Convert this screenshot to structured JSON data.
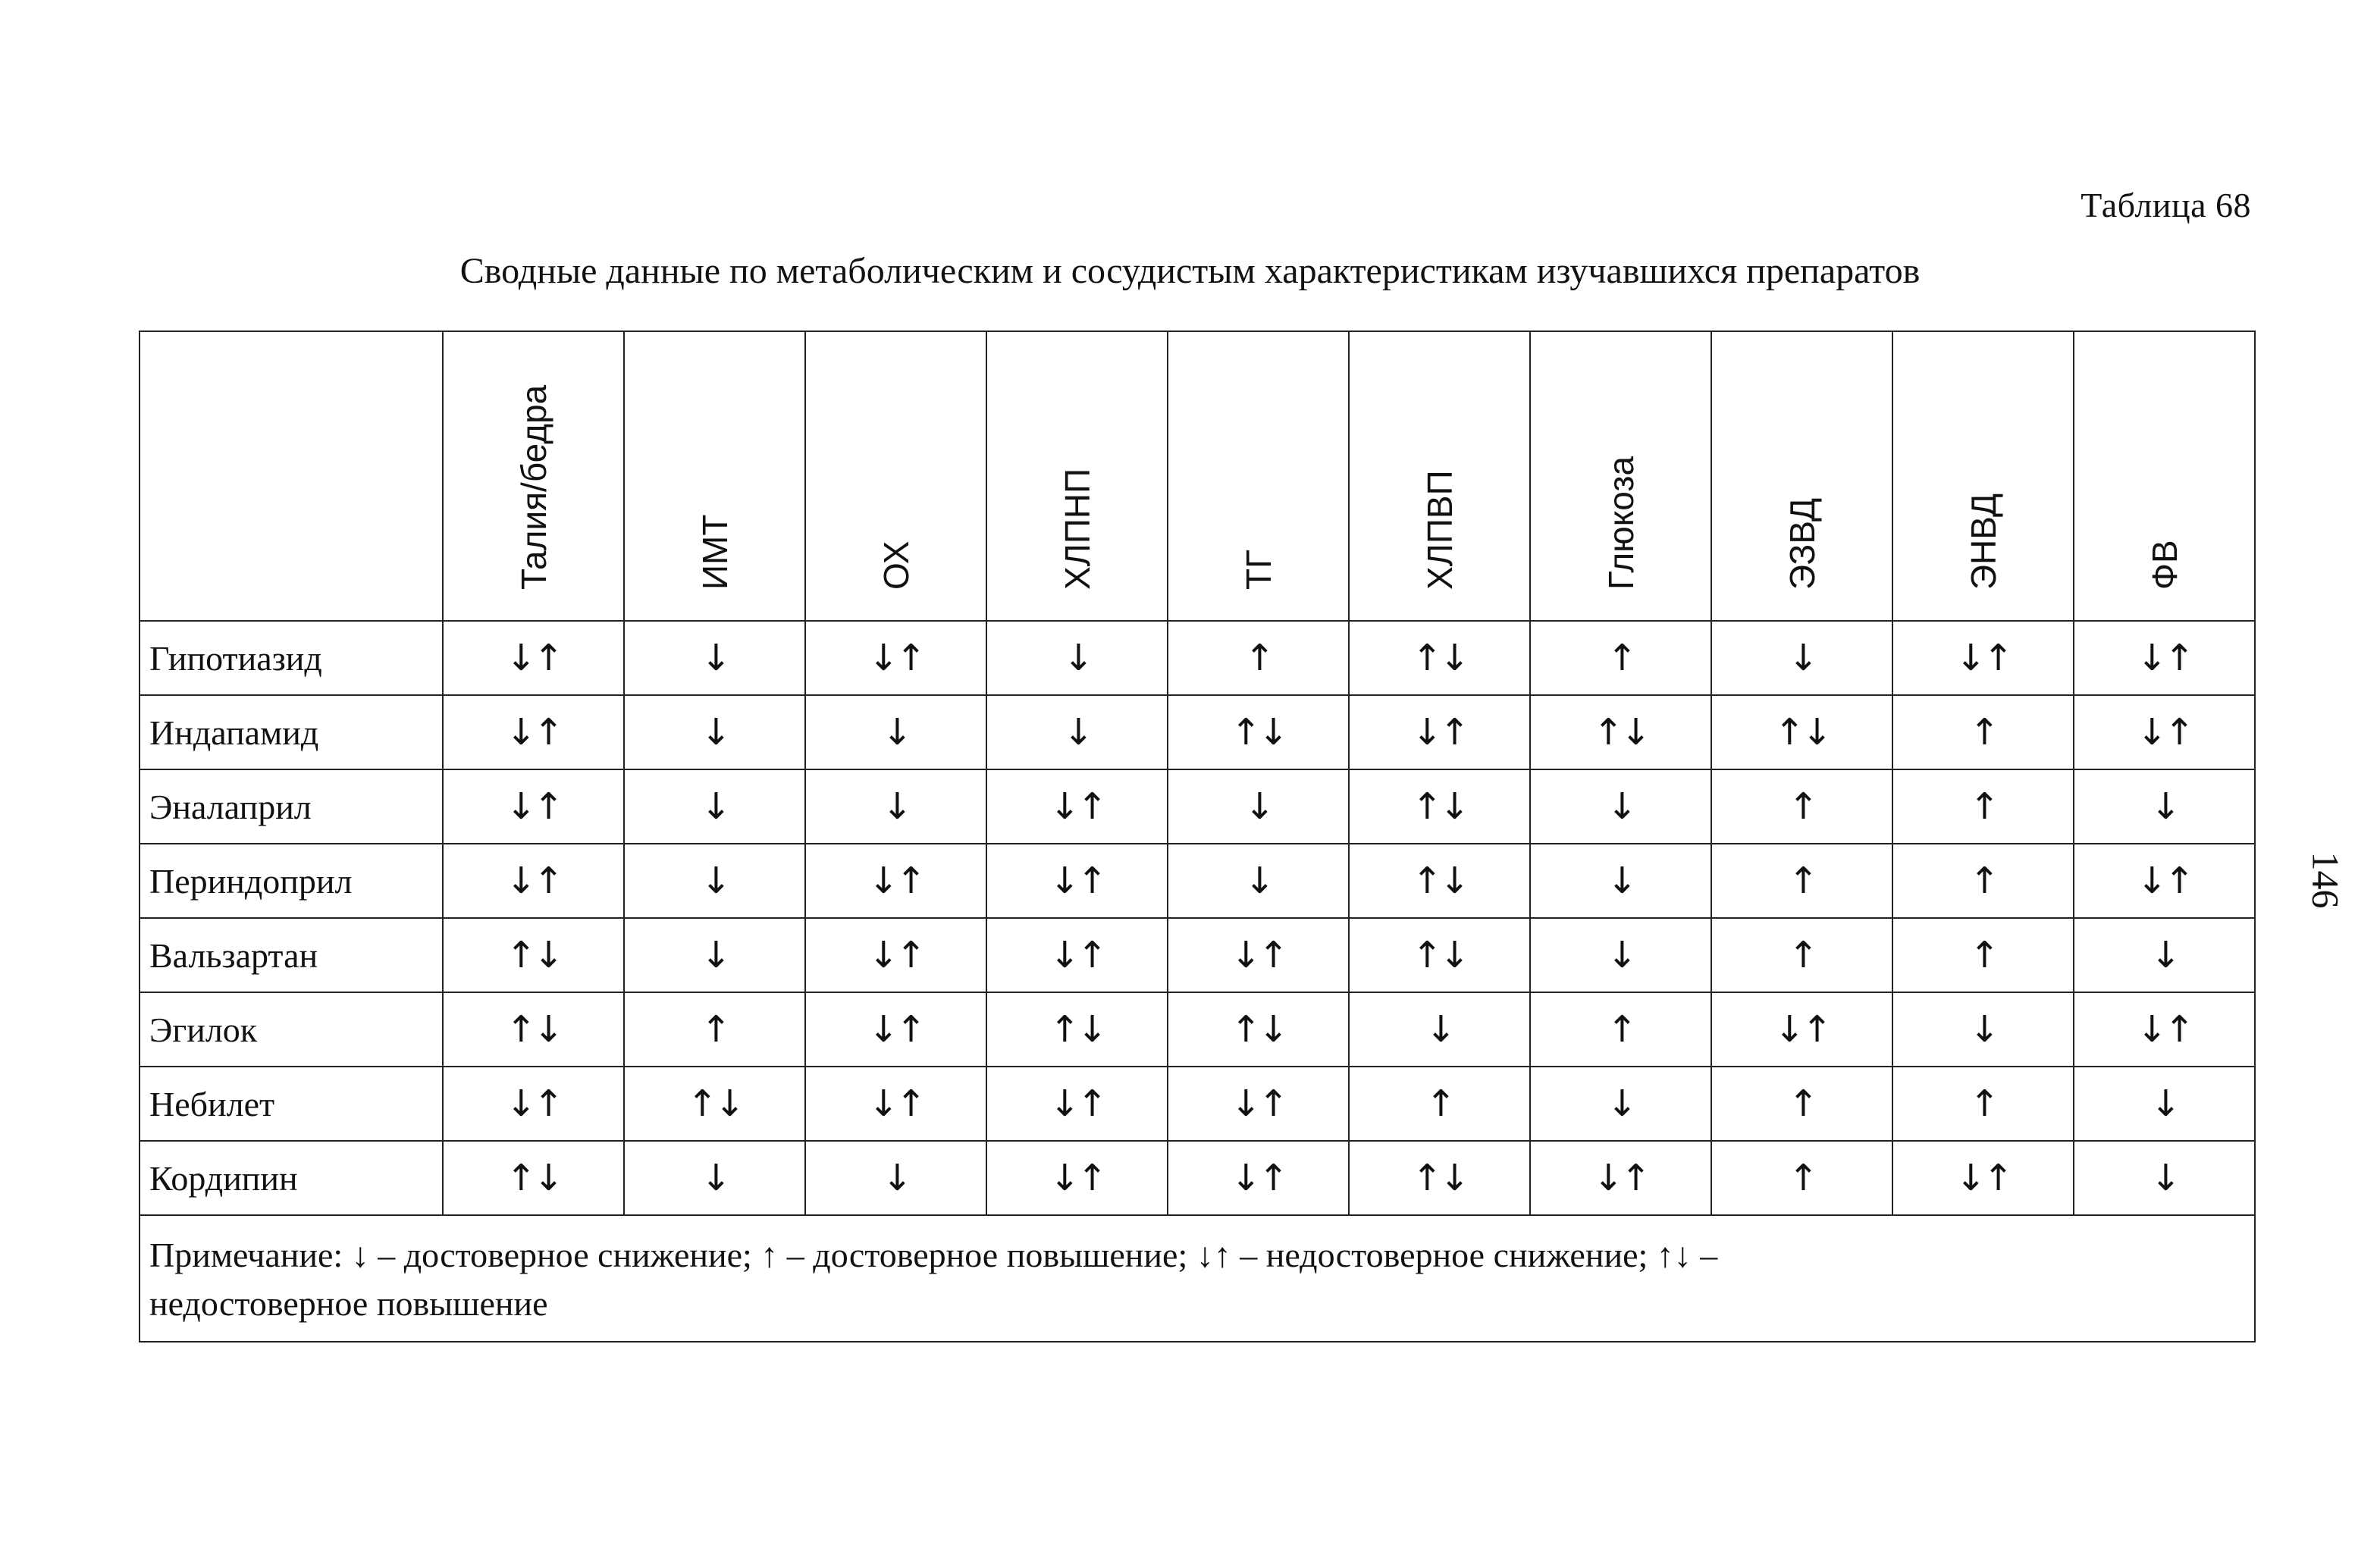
{
  "table_label": "Таблица 68",
  "title": "Сводные данные по метаболическим и сосудистым характеристикам изучавшихся препаратов",
  "page_number": "146",
  "columns": [
    "Талия/бедра",
    "ИМТ",
    "ОХ",
    "ХЛПНП",
    "ТГ",
    "ХЛПВП",
    "Глюкоза",
    "ЭЗВД",
    "ЭНВД",
    "ФВ"
  ],
  "rows": [
    {
      "drug": "Гипотиазид",
      "values": [
        "↓↑",
        "↓",
        "↓↑",
        "↓",
        "↑",
        "↑↓",
        "↑",
        "↓",
        "↓↑",
        "↓↑"
      ]
    },
    {
      "drug": "Индапамид",
      "values": [
        "↓↑",
        "↓",
        "↓",
        "↓",
        "↑↓",
        "↓↑",
        "↑↓",
        "↑↓",
        "↑",
        "↓↑"
      ]
    },
    {
      "drug": "Эналаприл",
      "values": [
        "↓↑",
        "↓",
        "↓",
        "↓↑",
        "↓",
        "↑↓",
        "↓",
        "↑",
        "↑",
        "↓"
      ]
    },
    {
      "drug": "Периндоприл",
      "values": [
        "↓↑",
        "↓",
        "↓↑",
        "↓↑",
        "↓",
        "↑↓",
        "↓",
        "↑",
        "↑",
        "↓↑"
      ]
    },
    {
      "drug": "Вальзартан",
      "values": [
        "↑↓",
        "↓",
        "↓↑",
        "↓↑",
        "↓↑",
        "↑↓",
        "↓",
        "↑",
        "↑",
        "↓"
      ]
    },
    {
      "drug": "Эгилок",
      "values": [
        "↑↓",
        "↑",
        "↓↑",
        "↑↓",
        "↑↓",
        "↓",
        "↑",
        "↓↑",
        "↓",
        "↓↑"
      ]
    },
    {
      "drug": "Небилет",
      "values": [
        "↓↑",
        "↑↓",
        "↓↑",
        "↓↑",
        "↓↑",
        "↑",
        "↓",
        "↑",
        "↑",
        "↓"
      ]
    },
    {
      "drug": "Кордипин",
      "values": [
        "↑↓",
        "↓",
        "↓",
        "↓↑",
        "↓↑",
        "↑↓",
        "↓↑",
        "↑",
        "↓↑",
        "↓"
      ]
    }
  ],
  "note": {
    "line1": "Примечание: ↓ – достоверное снижение; ↑ – достоверное повышение; ↓↑ – недостоверное снижение; ↑↓ –",
    "line2": "недостоверное повышение"
  }
}
